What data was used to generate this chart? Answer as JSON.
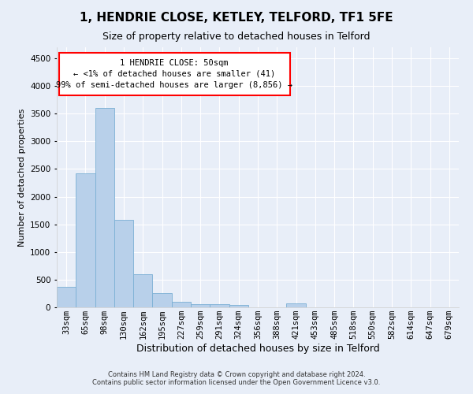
{
  "title": "1, HENDRIE CLOSE, KETLEY, TELFORD, TF1 5FE",
  "subtitle": "Size of property relative to detached houses in Telford",
  "xlabel": "Distribution of detached houses by size in Telford",
  "ylabel": "Number of detached properties",
  "categories": [
    "33sqm",
    "65sqm",
    "98sqm",
    "130sqm",
    "162sqm",
    "195sqm",
    "227sqm",
    "259sqm",
    "291sqm",
    "324sqm",
    "356sqm",
    "388sqm",
    "421sqm",
    "453sqm",
    "485sqm",
    "518sqm",
    "550sqm",
    "582sqm",
    "614sqm",
    "647sqm",
    "679sqm"
  ],
  "values": [
    370,
    2420,
    3600,
    1575,
    600,
    250,
    100,
    60,
    55,
    40,
    0,
    0,
    65,
    0,
    0,
    0,
    0,
    0,
    0,
    0,
    0
  ],
  "bar_color": "#b8d0ea",
  "bar_edge_color": "#7aafd4",
  "ylim": [
    0,
    4700
  ],
  "yticks": [
    0,
    500,
    1000,
    1500,
    2000,
    2500,
    3000,
    3500,
    4000,
    4500
  ],
  "annotation_line1": "1 HENDRIE CLOSE: 50sqm",
  "annotation_line2": "← <1% of detached houses are smaller (41)",
  "annotation_line3": "99% of semi-detached houses are larger (8,856) →",
  "footer_line1": "Contains HM Land Registry data © Crown copyright and database right 2024.",
  "footer_line2": "Contains public sector information licensed under the Open Government Licence v3.0.",
  "background_color": "#e8eef8",
  "grid_color": "#ffffff",
  "title_fontsize": 11,
  "subtitle_fontsize": 9,
  "axis_label_fontsize": 9,
  "tick_fontsize": 7.5,
  "ylabel_fontsize": 8
}
